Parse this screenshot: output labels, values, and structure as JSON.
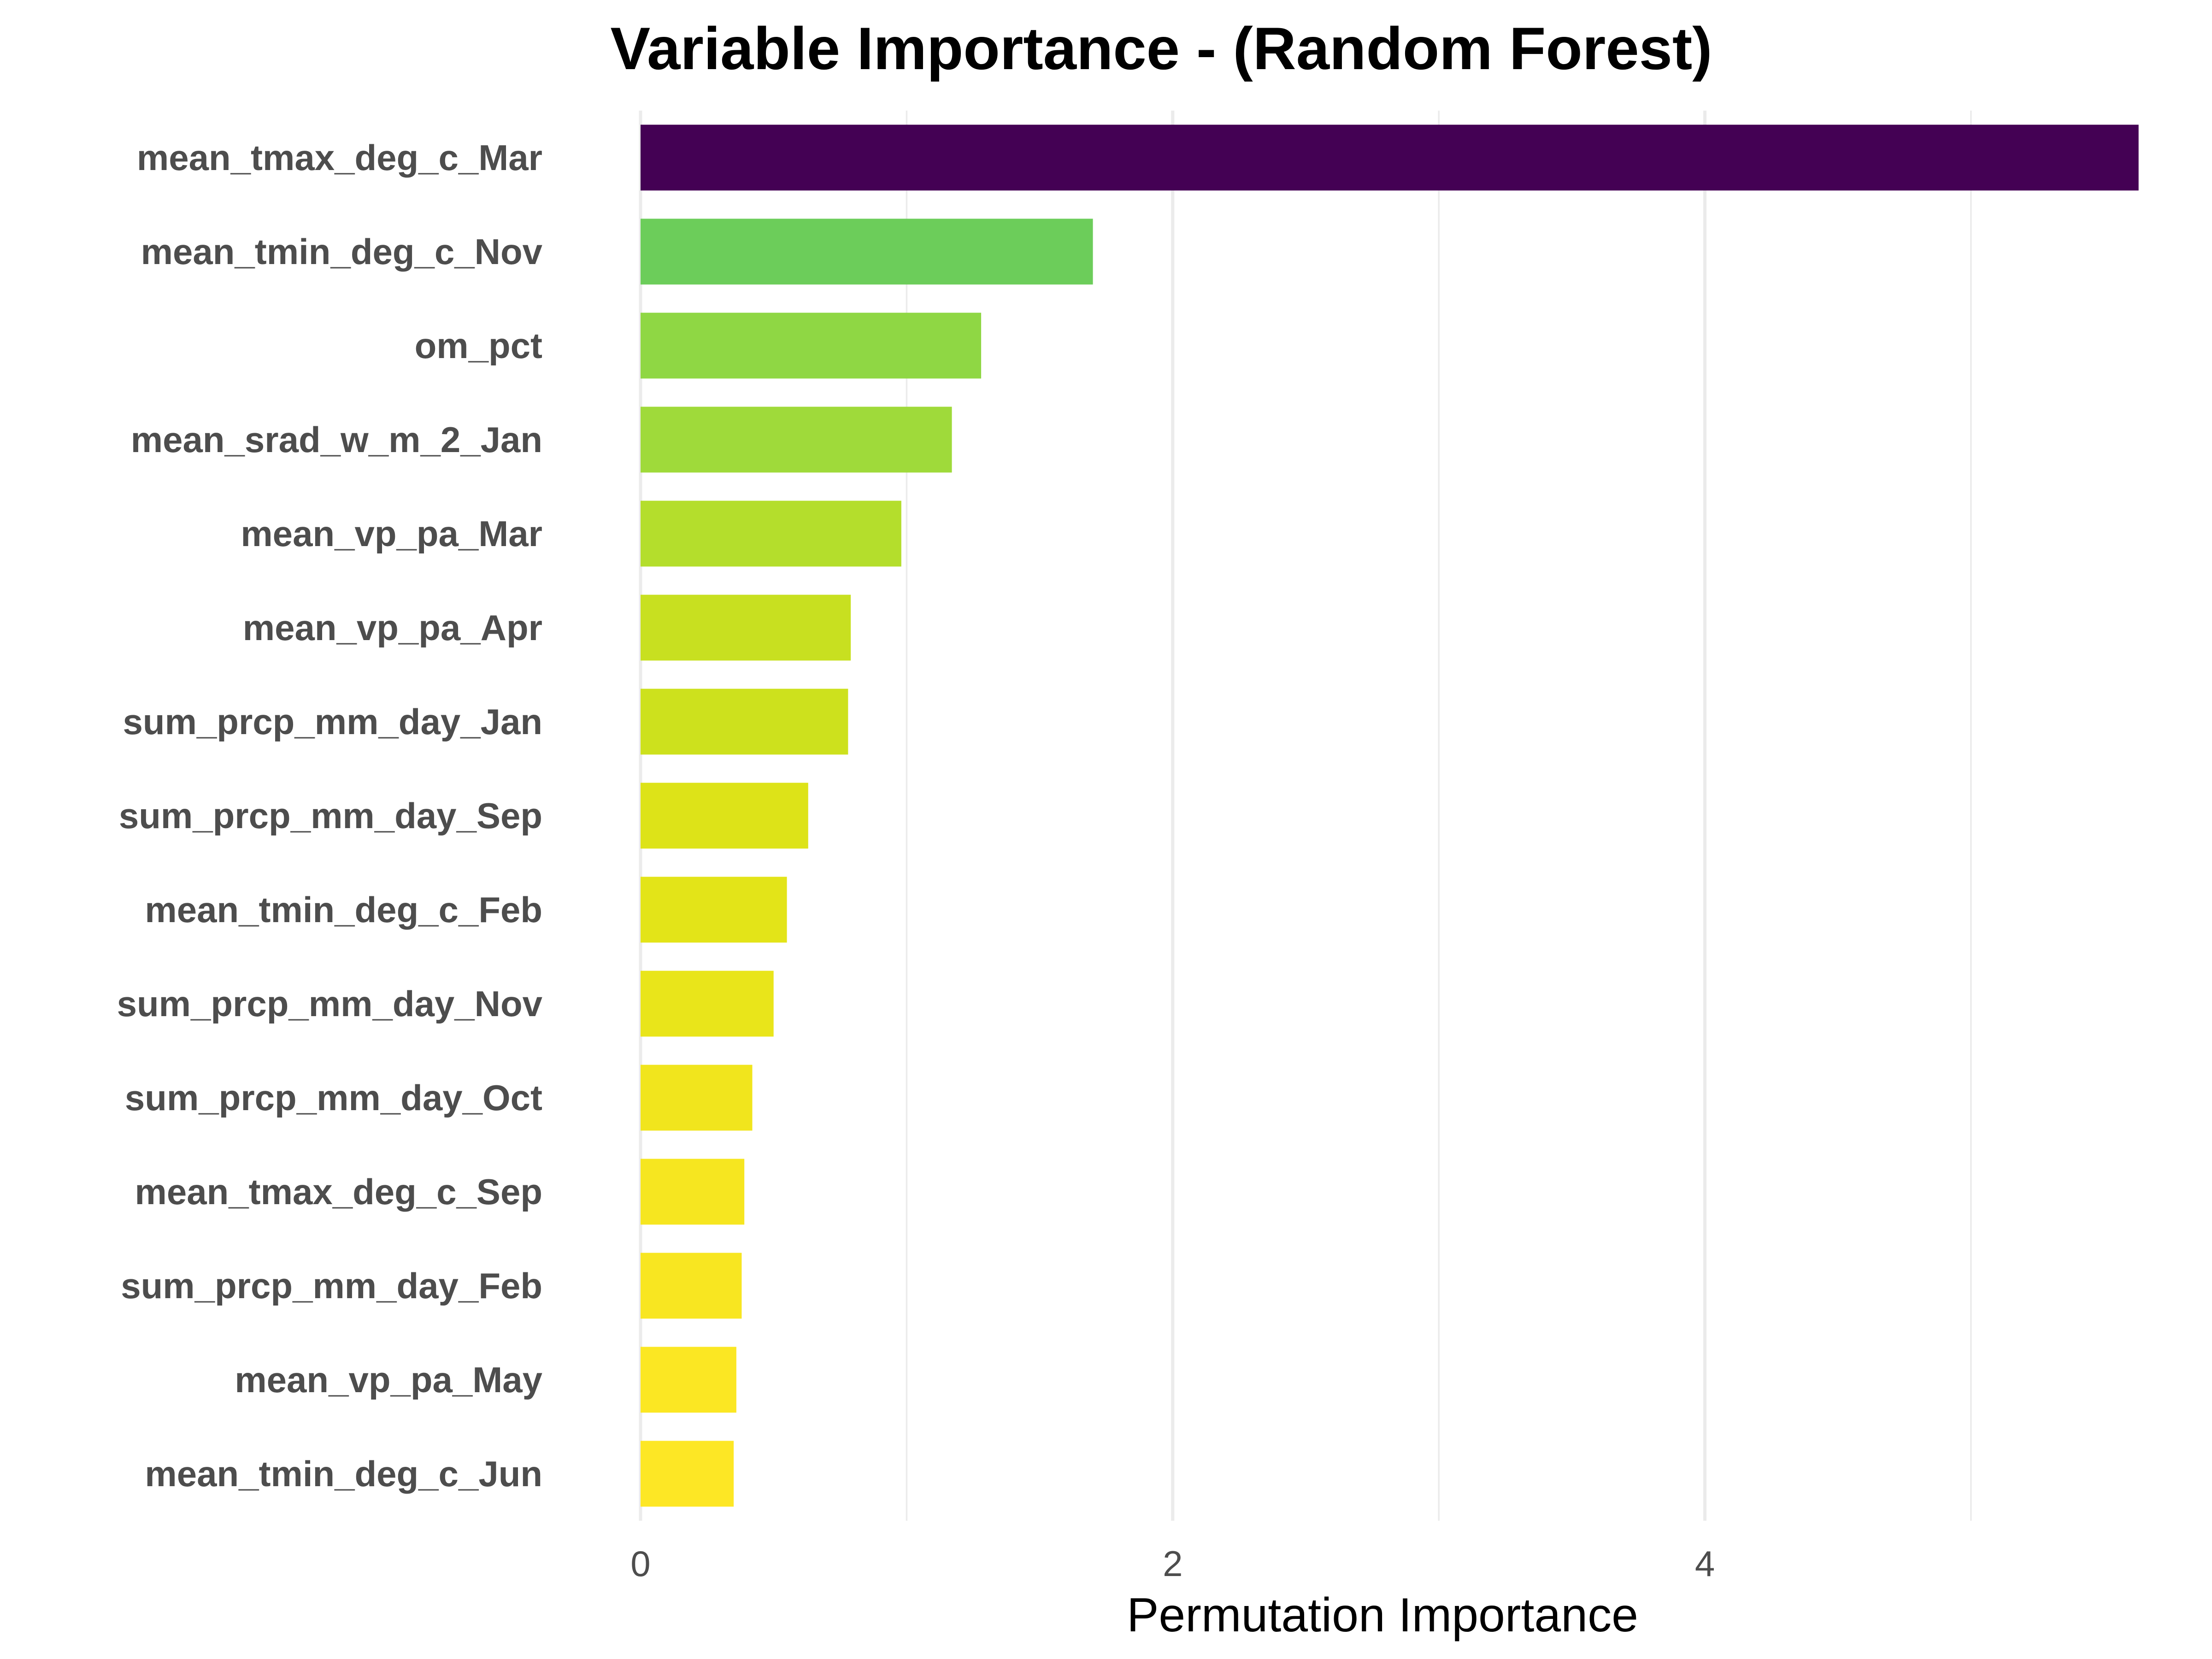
{
  "chart_data": {
    "type": "bar",
    "orientation": "horizontal",
    "title": "Variable Importance - (Random Forest)",
    "xlabel": "Permutation Importance",
    "ylabel": "",
    "xlim": [
      0,
      5.75
    ],
    "xticks": [
      0,
      2,
      4
    ],
    "grid": true,
    "legend": "none",
    "categories": [
      "mean_tmax_deg_c_Mar",
      "mean_tmin_deg_c_Nov",
      "om_pct",
      "mean_srad_w_m_2_Jan",
      "mean_vp_pa_Mar",
      "mean_vp_pa_Apr",
      "sum_prcp_mm_day_Jan",
      "sum_prcp_mm_day_Sep",
      "mean_tmin_deg_c_Feb",
      "sum_prcp_mm_day_Nov",
      "sum_prcp_mm_day_Oct",
      "mean_tmax_deg_c_Sep",
      "sum_prcp_mm_day_Feb",
      "mean_vp_pa_May",
      "mean_tmin_deg_c_Jun"
    ],
    "values": [
      5.63,
      1.7,
      1.28,
      1.17,
      0.98,
      0.79,
      0.78,
      0.63,
      0.55,
      0.5,
      0.42,
      0.39,
      0.38,
      0.36,
      0.35
    ],
    "colors": [
      "#440154",
      "#6ccd5a",
      "#8fd744",
      "#9fda3a",
      "#b4de2c",
      "#c8e020",
      "#cde11d",
      "#dde318",
      "#e3e418",
      "#e9e51a",
      "#f1e51d",
      "#f6e620",
      "#f8e621",
      "#fbe723",
      "#fde725"
    ]
  }
}
